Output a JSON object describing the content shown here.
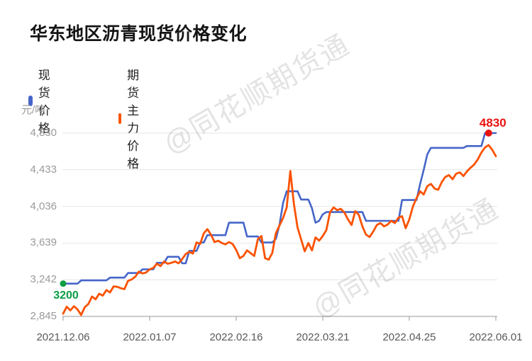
{
  "title": "华东地区沥青现货价格变化",
  "watermark": {
    "text": "@同花顺期货通"
  },
  "colors": {
    "spot_line": "#4565c8",
    "futures_line": "#fa5200",
    "start_annotation": "#0a9e43",
    "end_annotation": "#e8120f",
    "grid": "#e6e6e6",
    "axis": "#999999"
  },
  "annotations": {
    "start": {
      "label": "3200",
      "value": 3200,
      "index": 0,
      "series": "现货价格",
      "color": "#0a9e43"
    },
    "end": {
      "label": "4830",
      "value": 4830,
      "index": 118,
      "series": "现货价格",
      "color": "#e8120f"
    }
  },
  "chart_data": {
    "type": "line",
    "title": "华东地区沥青现货价格变化",
    "xlabel": "",
    "ylabel": "元/吨",
    "ylim": [
      2845,
      4830
    ],
    "grid": true,
    "legend_position": "top-left",
    "x_ticks": [
      "2021.12.06",
      "2022.01.07",
      "2022.02.16",
      "2022.03.21",
      "2022.04.25",
      "2022.06.01"
    ],
    "x_tick_indices": [
      0,
      24,
      48,
      72,
      96,
      120
    ],
    "y_ticks": [
      4830,
      4433,
      4036,
      3639,
      3242,
      2845
    ],
    "y_tick_labels": [
      "4,830",
      "4,433",
      "4,036",
      "3,639",
      "3,242",
      "2,845"
    ],
    "series": [
      {
        "name": "现货价格",
        "color": "#4565c8",
        "values": [
          3200,
          3200,
          3200,
          3200,
          3200,
          3235,
          3235,
          3235,
          3235,
          3235,
          3235,
          3235,
          3235,
          3265,
          3265,
          3265,
          3265,
          3265,
          3315,
          3315,
          3315,
          3315,
          3355,
          3355,
          3355,
          3355,
          3425,
          3425,
          3425,
          3490,
          3490,
          3490,
          3490,
          3420,
          3420,
          3555,
          3555,
          3555,
          3645,
          3645,
          3725,
          3725,
          3725,
          3725,
          3725,
          3725,
          3860,
          3860,
          3860,
          3860,
          3860,
          3710,
          3710,
          3710,
          3710,
          3645,
          3645,
          3645,
          3645,
          3685,
          3835,
          4075,
          4200,
          4200,
          4200,
          4200,
          4110,
          4110,
          4110,
          4015,
          3860,
          3880,
          3950,
          3975,
          3975,
          3975,
          3975,
          3975,
          3975,
          3975,
          3975,
          3975,
          3975,
          3975,
          3880,
          3880,
          3880,
          3880,
          3880,
          3880,
          3880,
          3880,
          3880,
          3880,
          4105,
          4105,
          4105,
          4105,
          4105,
          4280,
          4430,
          4600,
          4670,
          4670,
          4670,
          4670,
          4670,
          4670,
          4670,
          4670,
          4670,
          4670,
          4690,
          4690,
          4690,
          4690,
          4690,
          4830,
          4830,
          4830,
          4830
        ]
      },
      {
        "name": "期货主力价格",
        "color": "#fa5200",
        "values": [
          2875,
          2950,
          2910,
          2955,
          2920,
          2860,
          2945,
          2980,
          3060,
          3030,
          3090,
          3070,
          3130,
          3105,
          3170,
          3165,
          3150,
          3140,
          3230,
          3245,
          3275,
          3330,
          3310,
          3320,
          3355,
          3370,
          3415,
          3390,
          3440,
          3415,
          3425,
          3440,
          3420,
          3465,
          3520,
          3545,
          3525,
          3645,
          3630,
          3745,
          3790,
          3730,
          3650,
          3665,
          3640,
          3625,
          3650,
          3630,
          3565,
          3475,
          3500,
          3560,
          3530,
          3500,
          3680,
          3715,
          3475,
          3460,
          3530,
          3745,
          3830,
          3910,
          4025,
          4420,
          4065,
          3810,
          3680,
          3550,
          3640,
          3560,
          3700,
          3665,
          3715,
          3780,
          3970,
          4025,
          3995,
          4010,
          3970,
          3895,
          3835,
          3985,
          3945,
          3820,
          3730,
          3705,
          3765,
          3835,
          3855,
          3820,
          3840,
          3880,
          3855,
          3915,
          3930,
          3800,
          3895,
          4035,
          4125,
          4200,
          4165,
          4255,
          4280,
          4230,
          4215,
          4300,
          4355,
          4375,
          4330,
          4390,
          4405,
          4365,
          4415,
          4455,
          4490,
          4545,
          4620,
          4675,
          4700,
          4650,
          4580
        ]
      }
    ]
  }
}
